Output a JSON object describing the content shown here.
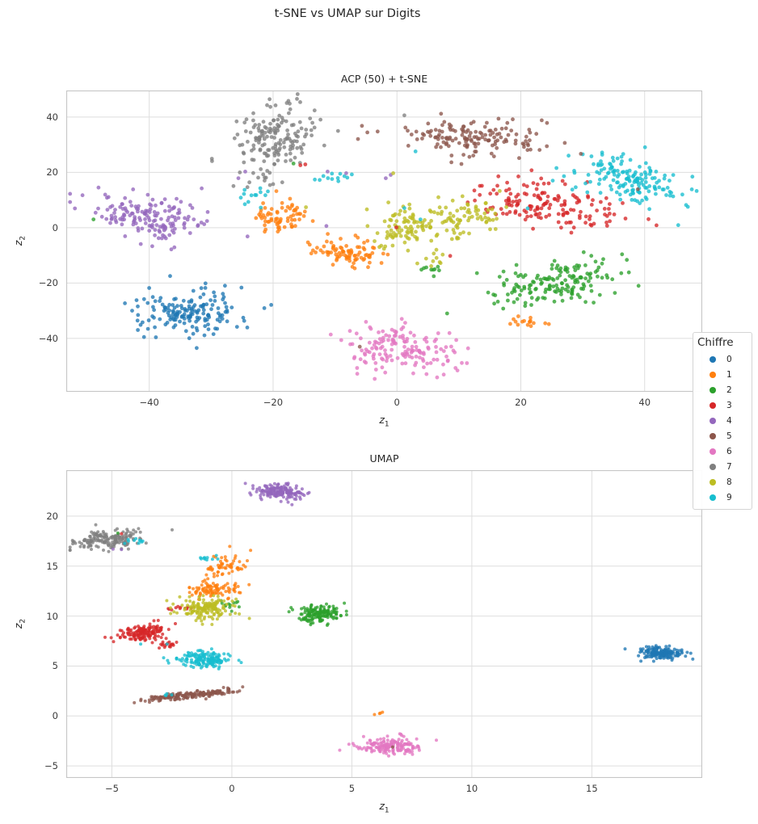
{
  "figure_title": "t-SNE vs UMAP sur Digits",
  "legend": {
    "title": "Chiffre",
    "entries": [
      "0",
      "1",
      "2",
      "3",
      "4",
      "5",
      "6",
      "7",
      "8",
      "9"
    ]
  },
  "palette": {
    "0": "#1f77b4",
    "1": "#ff7f0e",
    "2": "#2ca02c",
    "3": "#d62728",
    "4": "#9467bd",
    "5": "#8c564b",
    "6": "#e377c2",
    "7": "#7f7f7f",
    "8": "#bcbd22",
    "9": "#17becf"
  },
  "style": {
    "background": "#ffffff",
    "grid_color": "#dedede",
    "spine_color": "#c6c6c6",
    "text_color": "#262626",
    "tick_color": "#3a3a3a",
    "marker_alpha": 0.78
  },
  "chart_data": [
    {
      "type": "scatter",
      "title": "ACP (50) + t-SNE",
      "xlabel": {
        "base": "z",
        "sub": "1"
      },
      "ylabel": {
        "base": "z",
        "sub": "2"
      },
      "xlim": [
        -53.4,
        49.3
      ],
      "ylim": [
        -59.3,
        49.6
      ],
      "xticks": [
        -40,
        -20,
        0,
        20,
        40
      ],
      "yticks": [
        -40,
        -20,
        0,
        20,
        40
      ],
      "grid": true,
      "legend_title": "Chiffre",
      "marker_radius": 2.4,
      "clusters_format": [
        "digit",
        "cx",
        "cy",
        "sx",
        "sy",
        "n",
        "rho"
      ],
      "clusters": [
        [
          0,
          -33,
          -30.5,
          4.2,
          4.2,
          168,
          0.15
        ],
        [
          1,
          -19,
          4.0,
          2.1,
          2.9,
          68,
          0.1
        ],
        [
          1,
          -8,
          -9,
          2.9,
          2.5,
          86,
          -0.3
        ],
        [
          1,
          20.8,
          -34,
          1.3,
          1.2,
          16,
          0
        ],
        [
          2,
          25,
          -20,
          4.7,
          4.4,
          162,
          0.35
        ],
        [
          2,
          5.8,
          -15,
          1.5,
          0.8,
          9,
          0
        ],
        [
          3,
          24,
          9,
          5.8,
          4.2,
          158,
          -0.35
        ],
        [
          4,
          -40,
          4,
          4.7,
          3.8,
          160,
          -0.3
        ],
        [
          5,
          13,
          33,
          6.2,
          3.3,
          150,
          -0.1
        ],
        [
          6,
          0.5,
          -44,
          4.5,
          4.3,
          158,
          -0.25
        ],
        [
          7,
          -19.5,
          32.5,
          3.5,
          5.8,
          162,
          0.25
        ],
        [
          7,
          -21.5,
          17,
          1.3,
          1.8,
          10,
          0
        ],
        [
          8,
          2,
          1,
          3.2,
          4.0,
          95,
          0.45
        ],
        [
          8,
          11,
          4,
          3.3,
          3.4,
          70,
          0.3
        ],
        [
          8,
          5.5,
          -11.5,
          1.3,
          1.5,
          10,
          0
        ],
        [
          9,
          37.5,
          17.5,
          4.2,
          4.5,
          160,
          -0.4
        ],
        [
          9,
          -23,
          12,
          1.4,
          2.1,
          13,
          0.3
        ],
        [
          9,
          -10,
          18.5,
          1.6,
          0.9,
          12,
          0
        ]
      ],
      "outliers_format": [
        "digit",
        "x",
        "y"
      ],
      "outliers": [
        [
          2,
          -49,
          3
        ],
        [
          2,
          -16.7,
          23.2
        ],
        [
          3,
          -15.6,
          22.6
        ],
        [
          3,
          -14.8,
          22.9
        ],
        [
          3,
          8.6,
          -10.2
        ],
        [
          3,
          -0.1,
          0.1
        ],
        [
          4,
          -25.6,
          17.9
        ],
        [
          4,
          -24.5,
          20.3
        ],
        [
          4,
          -11.2,
          20.3
        ],
        [
          4,
          -8.2,
          19.7
        ],
        [
          4,
          -1.8,
          17.9
        ],
        [
          4,
          -1.0,
          19.1
        ],
        [
          4,
          -11.4,
          0.6
        ],
        [
          5,
          29.7,
          26.7
        ],
        [
          5,
          38.9,
          13.9
        ],
        [
          5,
          -6,
          -43
        ],
        [
          7,
          1.2,
          40.6
        ],
        [
          8,
          -14.7,
          7.4
        ],
        [
          8,
          -0.6,
          19.7
        ],
        [
          9,
          3,
          27.6
        ],
        [
          9,
          1.2,
          7.1
        ],
        [
          9,
          3.8,
          3
        ],
        [
          9,
          21.1,
          7
        ]
      ]
    },
    {
      "type": "scatter",
      "title": "UMAP",
      "xlabel": {
        "base": "z",
        "sub": "1"
      },
      "ylabel": {
        "base": "z",
        "sub": "2"
      },
      "xlim": [
        -6.9,
        19.6
      ],
      "ylim": [
        -6.2,
        24.6
      ],
      "xticks": [
        -5,
        0,
        5,
        10,
        15
      ],
      "yticks": [
        -5,
        0,
        5,
        10,
        15,
        20
      ],
      "grid": true,
      "marker_radius": 2.0,
      "clusters_format": [
        "digit",
        "cx",
        "cy",
        "sx",
        "sy",
        "n",
        "rho"
      ],
      "clusters": [
        [
          0,
          17.9,
          6.3,
          0.5,
          0.32,
          168,
          -0.3
        ],
        [
          1,
          -0.25,
          15.0,
          0.4,
          0.5,
          58,
          0.2
        ],
        [
          1,
          -0.65,
          12.6,
          0.55,
          0.45,
          92,
          0
        ],
        [
          1,
          6.1,
          0.35,
          0.13,
          0.1,
          4,
          0
        ],
        [
          2,
          3.65,
          10.2,
          0.5,
          0.45,
          152,
          0.2
        ],
        [
          2,
          0.0,
          11.2,
          0.22,
          0.27,
          12,
          0
        ],
        [
          3,
          -3.75,
          8.4,
          0.5,
          0.45,
          142,
          0.2
        ],
        [
          3,
          -2.6,
          7.15,
          0.28,
          0.18,
          18,
          0
        ],
        [
          3,
          -2.2,
          10.8,
          0.28,
          0.13,
          12,
          0
        ],
        [
          4,
          1.95,
          22.5,
          0.5,
          0.38,
          168,
          -0.2
        ],
        [
          5,
          -1.75,
          2.1,
          1.0,
          0.28,
          168,
          0.8
        ],
        [
          6,
          6.6,
          -3.0,
          0.68,
          0.4,
          168,
          0
        ],
        [
          7,
          -5.1,
          17.6,
          0.78,
          0.5,
          168,
          0.25
        ],
        [
          8,
          -1.15,
          10.7,
          0.58,
          0.55,
          158,
          0
        ],
        [
          9,
          -1.05,
          5.7,
          0.55,
          0.4,
          156,
          0
        ],
        [
          9,
          -4.0,
          17.45,
          0.35,
          0.18,
          10,
          0
        ],
        [
          9,
          -0.95,
          15.75,
          0.3,
          0.14,
          10,
          0
        ],
        [
          9,
          -2.75,
          2.05,
          0.16,
          0.1,
          4,
          0
        ]
      ],
      "outliers_format": [
        "digit",
        "x",
        "y"
      ],
      "outliers": [
        [
          3,
          -4.6,
          18.25
        ],
        [
          2,
          -4.75,
          18.3
        ],
        [
          4,
          -4.95,
          16.7
        ],
        [
          4,
          -4.6,
          16.65
        ],
        [
          5,
          6.7,
          -3.1
        ],
        [
          9,
          -3.8,
          7.2
        ],
        [
          9,
          -2.7,
          7.2
        ]
      ]
    }
  ]
}
